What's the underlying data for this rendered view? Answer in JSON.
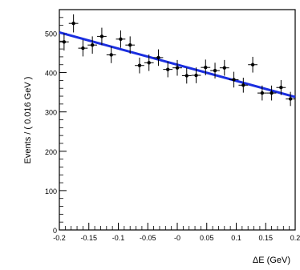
{
  "chart_data": {
    "type": "scatter",
    "xlabel": "ΔE (GeV)",
    "ylabel": "Events / ( 0.016 GeV )",
    "xlim": [
      -0.2,
      0.2
    ],
    "ylim": [
      0,
      560
    ],
    "x_ticks": [
      -0.2,
      -0.15,
      -0.1,
      -0.05,
      0,
      0.05,
      0.1,
      0.15,
      0.2
    ],
    "x_tick_labels": [
      "-0.2",
      "-0.15",
      "-0.1",
      "-0.05",
      "-0",
      "0.05",
      "0.1",
      "0.15",
      "0.2"
    ],
    "y_ticks": [
      0,
      100,
      200,
      300,
      400,
      500
    ],
    "y_tick_labels": [
      "0",
      "100",
      "200",
      "300",
      "400",
      "500"
    ],
    "series": [
      {
        "kind": "points_with_errors",
        "x": [
          -0.192,
          -0.176,
          -0.16,
          -0.144,
          -0.128,
          -0.112,
          -0.096,
          -0.08,
          -0.064,
          -0.048,
          -0.032,
          -0.016,
          0.0,
          0.016,
          0.032,
          0.048,
          0.064,
          0.08,
          0.096,
          0.112,
          0.128,
          0.144,
          0.16,
          0.176,
          0.192
        ],
        "y": [
          478,
          525,
          462,
          470,
          492,
          445,
          485,
          470,
          418,
          425,
          438,
          408,
          412,
          392,
          393,
          413,
          405,
          412,
          382,
          368,
          420,
          348,
          348,
          362,
          333
        ],
        "yerr": [
          22,
          23,
          21,
          22,
          22,
          21,
          22,
          22,
          20,
          21,
          21,
          20,
          20,
          20,
          20,
          20,
          20,
          20,
          20,
          19,
          20,
          19,
          19,
          19,
          18
        ]
      },
      {
        "kind": "fit_line",
        "x": [
          -0.2,
          0.2
        ],
        "y": [
          502,
          338
        ]
      }
    ],
    "colors": {
      "points": "#000000",
      "fit": "#1a2ee0"
    },
    "grid": false,
    "legend": "none"
  }
}
